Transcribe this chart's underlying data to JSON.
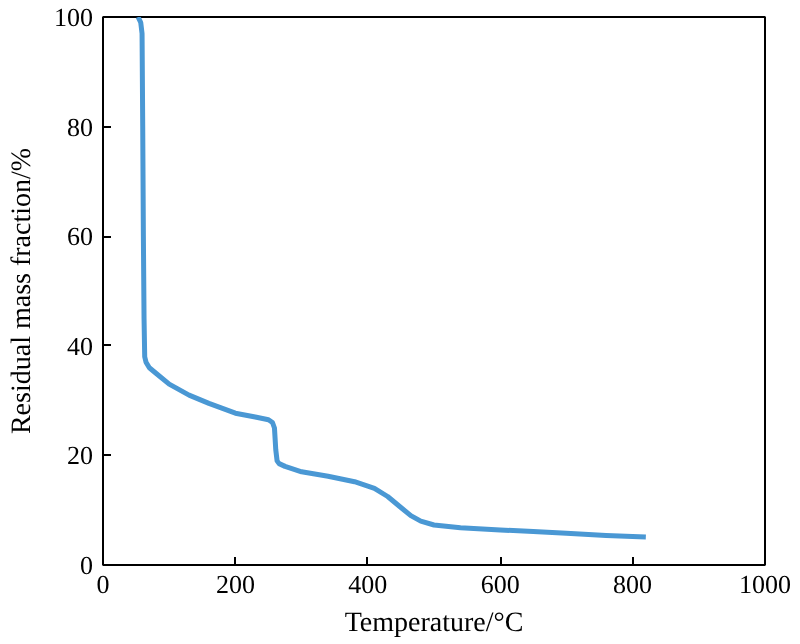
{
  "chart_data": {
    "type": "line",
    "xlabel": "Temperature/°C",
    "ylabel": "Residual mass fraction/%",
    "series": [
      {
        "color": "#4a98d4",
        "x": [
          53,
          57,
          59,
          60,
          61,
          62,
          63,
          65,
          70,
          80,
          100,
          130,
          160,
          200,
          230,
          250,
          256,
          259,
          261,
          263,
          266,
          275,
          300,
          340,
          380,
          410,
          430,
          450,
          465,
          480,
          500,
          540,
          600,
          650,
          700,
          760,
          820
        ],
        "values": [
          100,
          99,
          97,
          80,
          60,
          45,
          38,
          37,
          36,
          35,
          33,
          31,
          29.5,
          27.7,
          27,
          26.5,
          26,
          25,
          21,
          19,
          18.5,
          18,
          17,
          16.2,
          15.2,
          14,
          12.5,
          10.5,
          9,
          8,
          7.3,
          6.8,
          6.4,
          6.1,
          5.8,
          5.4,
          5.1
        ]
      }
    ],
    "xlim": [
      0,
      1000
    ],
    "ylim": [
      0,
      100
    ],
    "xticks": [
      0,
      200,
      400,
      600,
      800,
      1000
    ],
    "yticks": [
      0,
      20,
      40,
      60,
      80,
      100
    ],
    "line_style": "solid",
    "marker": "none"
  }
}
